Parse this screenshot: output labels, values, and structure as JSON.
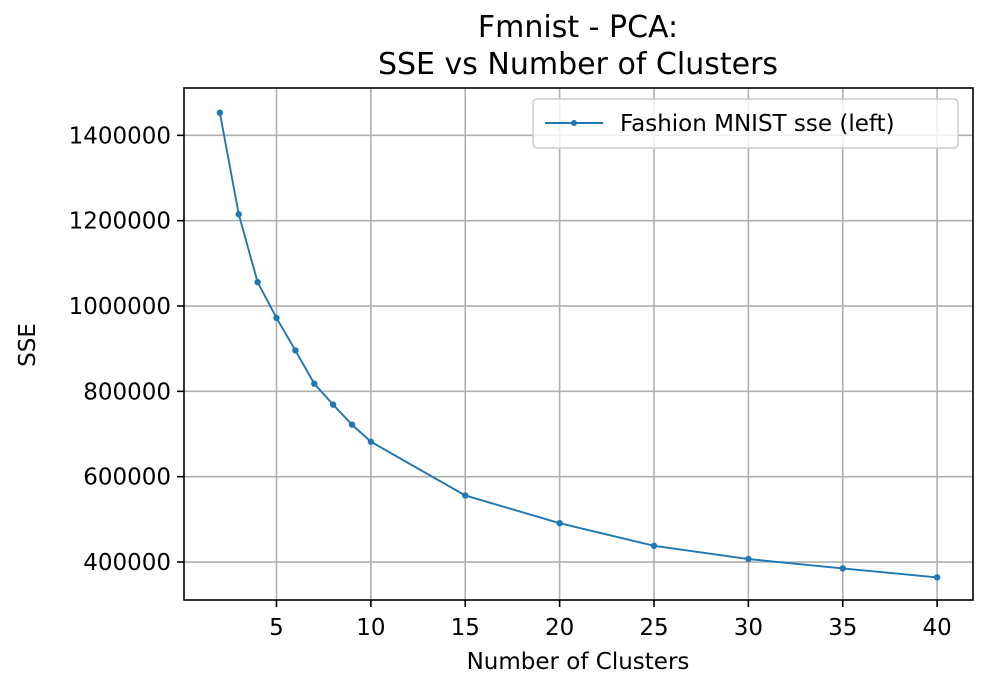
{
  "chart_data": {
    "type": "line",
    "title_line1": "Fmnist - PCA:",
    "title_line2": "SSE vs Number of Clusters",
    "xlabel": "Number of Clusters",
    "ylabel": "SSE",
    "xlim": [
      0.1,
      41.9
    ],
    "ylim": [
      311000,
      1511000
    ],
    "xticks": [
      5,
      10,
      15,
      20,
      25,
      30,
      35,
      40
    ],
    "yticks": [
      400000,
      600000,
      800000,
      1000000,
      1200000,
      1400000
    ],
    "xtick_labels": [
      "5",
      "10",
      "15",
      "20",
      "25",
      "30",
      "35",
      "40"
    ],
    "ytick_labels": [
      "400000",
      "600000",
      "800000",
      "1000000",
      "1200000",
      "1400000"
    ],
    "grid": true,
    "legend_position": "upper right",
    "line_color": "#1f77b4",
    "series": [
      {
        "name": "Fashion MNIST sse (left)",
        "x": [
          2,
          3,
          4,
          5,
          6,
          7,
          8,
          9,
          10,
          15,
          20,
          25,
          30,
          35,
          40
        ],
        "y": [
          1453000,
          1215000,
          1056000,
          972000,
          896000,
          818000,
          769000,
          722000,
          682000,
          556000,
          491000,
          438000,
          407000,
          385000,
          364000
        ]
      }
    ]
  }
}
